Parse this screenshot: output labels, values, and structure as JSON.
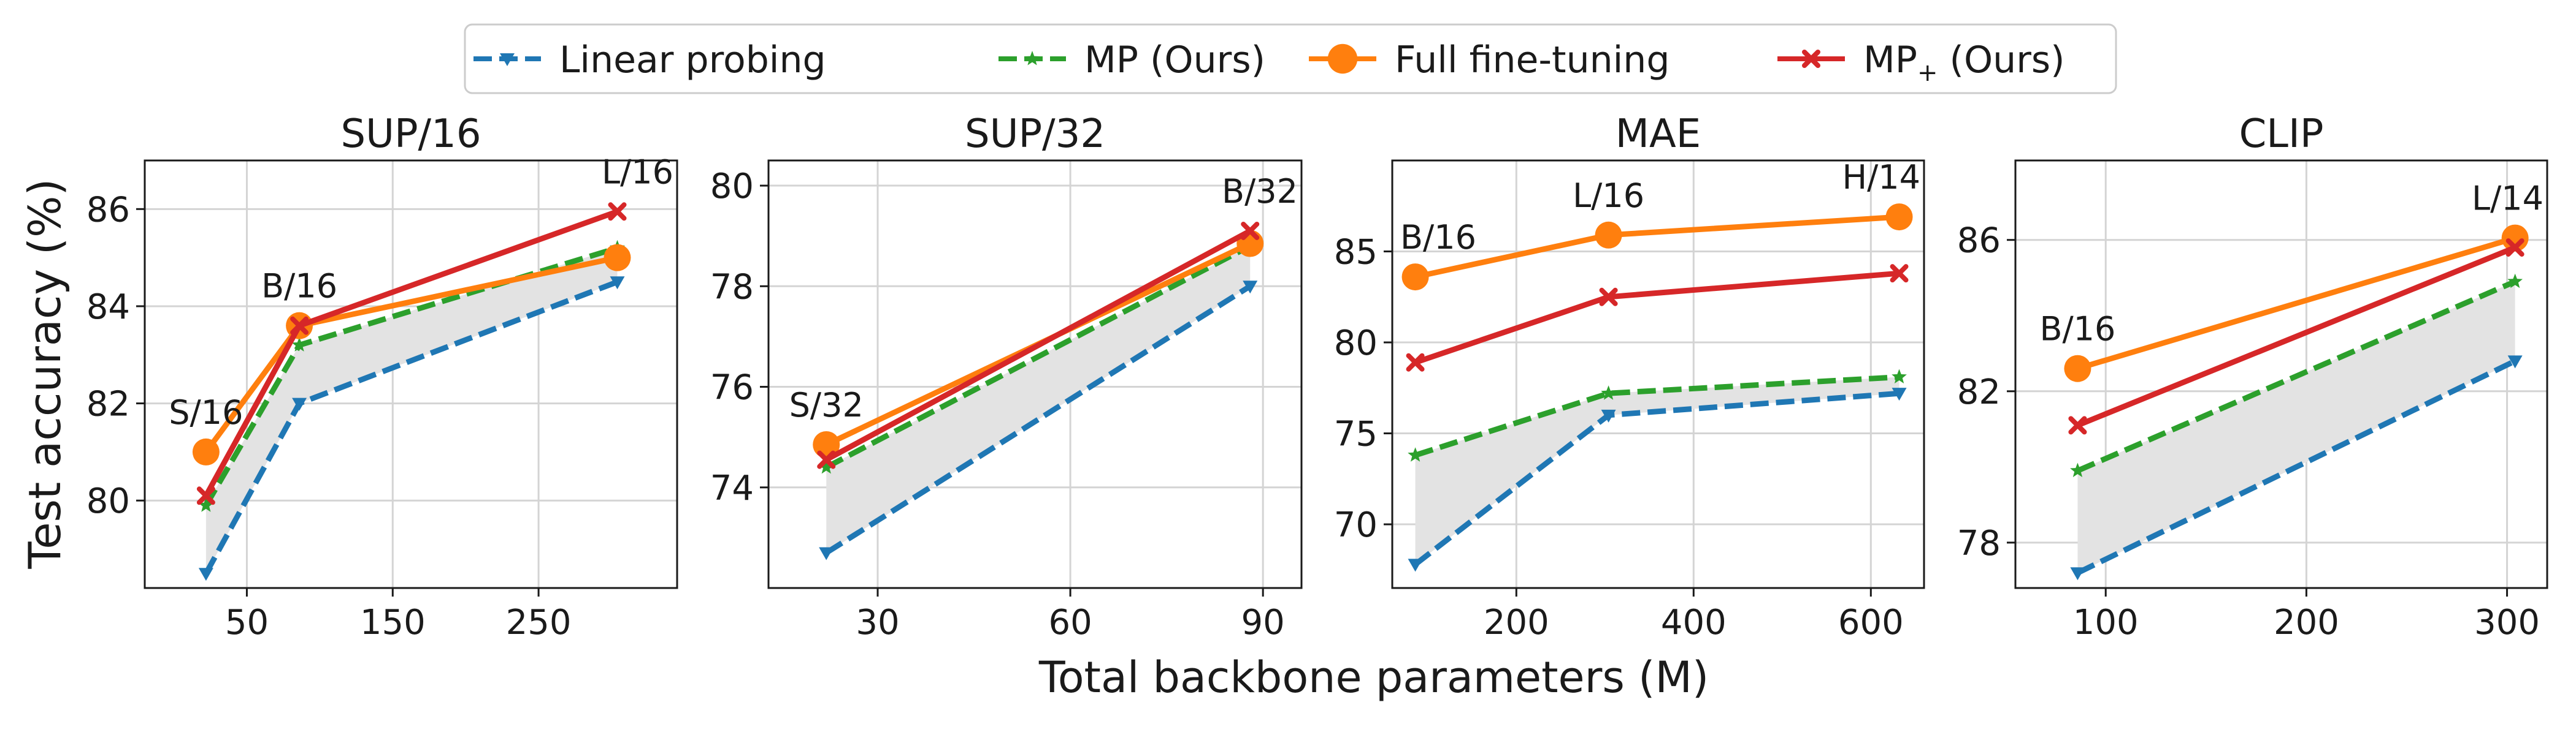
{
  "figure": {
    "ylabel": "Test accuracy (%)",
    "xlabel": "Total backbone parameters (M)"
  },
  "legend": [
    {
      "label": "Linear probing",
      "color": "#1f77b4",
      "linestyle": "dashed",
      "marker": "triangle-down"
    },
    {
      "label": "MP (Ours)",
      "color": "#2ca02c",
      "linestyle": "dashed",
      "marker": "star"
    },
    {
      "label": "Full fine-tuning",
      "color": "#ff7f0e",
      "linestyle": "solid",
      "marker": "circle"
    },
    {
      "label": "MP",
      "label_subscript": "+",
      "label_suffix": " (Ours)",
      "color": "#d62728",
      "linestyle": "solid",
      "marker": "x"
    }
  ],
  "chart_data": [
    {
      "type": "line",
      "title": "SUP/16",
      "xlim": [
        -20,
        345
      ],
      "ylim": [
        78.2,
        87.0
      ],
      "xticks": [
        50,
        150,
        250
      ],
      "yticks": [
        80,
        82,
        84,
        86
      ],
      "x": [
        22,
        86,
        304
      ],
      "point_labels": [
        "S/16",
        "B/16",
        "L/16"
      ],
      "grid": true,
      "shade_between": [
        "Linear probing",
        "MP (Ours)"
      ],
      "series": [
        {
          "name": "Linear probing",
          "values": [
            78.5,
            82.0,
            84.5
          ]
        },
        {
          "name": "MP (Ours)",
          "values": [
            79.9,
            83.2,
            85.2
          ]
        },
        {
          "name": "Full fine-tuning",
          "values": [
            81.0,
            83.6,
            85.0
          ]
        },
        {
          "name": "MP+ (Ours)",
          "values": [
            80.1,
            83.6,
            85.95
          ]
        }
      ]
    },
    {
      "type": "line",
      "title": "SUP/32",
      "xlim": [
        13,
        96
      ],
      "ylim": [
        72.0,
        80.5
      ],
      "xticks": [
        30,
        60,
        90
      ],
      "yticks": [
        74,
        76,
        78,
        80
      ],
      "x": [
        22,
        88
      ],
      "point_labels": [
        "S/32",
        "B/32"
      ],
      "grid": true,
      "shade_between": [
        "Linear probing",
        "MP (Ours)"
      ],
      "series": [
        {
          "name": "Linear probing",
          "values": [
            72.7,
            78.0
          ]
        },
        {
          "name": "MP (Ours)",
          "values": [
            74.4,
            78.8
          ]
        },
        {
          "name": "Full fine-tuning",
          "values": [
            74.85,
            78.85
          ]
        },
        {
          "name": "MP+ (Ours)",
          "values": [
            74.55,
            79.1
          ]
        }
      ]
    },
    {
      "type": "line",
      "title": "MAE",
      "xlim": [
        60,
        660
      ],
      "ylim": [
        66.5,
        90.0
      ],
      "xticks": [
        200,
        400,
        600
      ],
      "yticks": [
        70,
        75,
        80,
        85
      ],
      "x": [
        86,
        304,
        632
      ],
      "point_labels": [
        "B/16",
        "L/16",
        "H/14"
      ],
      "grid": true,
      "shade_between": [
        "Linear probing",
        "MP (Ours)"
      ],
      "series": [
        {
          "name": "Linear probing",
          "values": [
            67.8,
            76.0,
            77.2
          ]
        },
        {
          "name": "MP (Ours)",
          "values": [
            73.8,
            77.2,
            78.1
          ]
        },
        {
          "name": "Full fine-tuning",
          "values": [
            83.6,
            85.9,
            86.9
          ]
        },
        {
          "name": "MP+ (Ours)",
          "values": [
            78.9,
            82.5,
            83.8
          ]
        }
      ]
    },
    {
      "type": "line",
      "title": "CLIP",
      "xlim": [
        55,
        320
      ],
      "ylim": [
        76.8,
        88.1
      ],
      "xticks": [
        100,
        200,
        300
      ],
      "yticks": [
        78,
        82,
        86
      ],
      "x": [
        86,
        304
      ],
      "point_labels": [
        "B/16",
        "L/14"
      ],
      "grid": true,
      "shade_between": [
        "Linear probing",
        "MP (Ours)"
      ],
      "series": [
        {
          "name": "Linear probing",
          "values": [
            77.2,
            82.8
          ]
        },
        {
          "name": "MP (Ours)",
          "values": [
            79.9,
            84.9
          ]
        },
        {
          "name": "Full fine-tuning",
          "values": [
            82.6,
            86.05
          ]
        },
        {
          "name": "MP+ (Ours)",
          "values": [
            81.1,
            85.8
          ]
        }
      ]
    }
  ]
}
